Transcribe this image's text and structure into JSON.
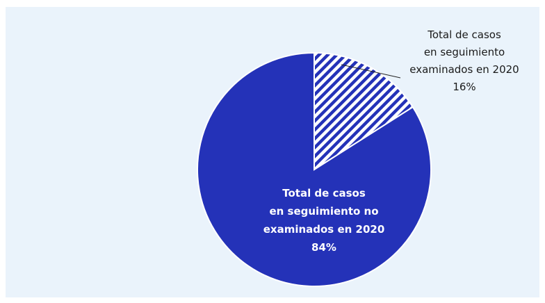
{
  "chart_data": {
    "type": "pie",
    "categories": [
      "Total de casos\nen seguimiento\nexaminados en 2020",
      "Total de casos\nen seguimiento no\nexaminados en 2020"
    ],
    "values": [
      16,
      84
    ],
    "value_labels": [
      "16%",
      "84%"
    ],
    "colors": [
      "#2432b8",
      "#2432b8"
    ],
    "hatch": [
      true,
      false
    ]
  }
}
